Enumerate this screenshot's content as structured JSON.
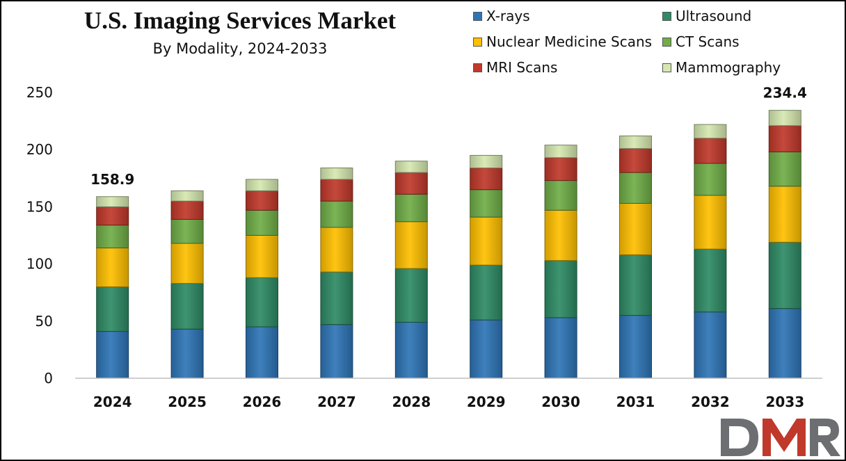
{
  "chart_data": {
    "type": "bar",
    "stacked": true,
    "title": "U.S. Imaging Services Market",
    "subtitle": "By Modality, 2024-2033",
    "categories": [
      "2024",
      "2025",
      "2026",
      "2027",
      "2028",
      "2029",
      "2030",
      "2031",
      "2032",
      "2033"
    ],
    "ylim": [
      0,
      250
    ],
    "yticks": [
      0,
      50,
      100,
      150,
      200,
      250
    ],
    "legend_position": "top-right",
    "grid": false,
    "series": [
      {
        "name": "X-rays",
        "color": "#2e75b6",
        "values": [
          41,
          43,
          45,
          47,
          49,
          51,
          53,
          55,
          58,
          61
        ]
      },
      {
        "name": "Ultrasound",
        "color": "#2e8b65",
        "values": [
          39,
          40,
          43,
          46,
          47,
          48,
          50,
          53,
          55,
          58
        ]
      },
      {
        "name": "Nuclear Medicine Scans",
        "color": "#ffc000",
        "values": [
          34,
          35,
          37,
          39,
          41,
          42,
          44,
          45,
          47,
          49
        ]
      },
      {
        "name": "CT Scans",
        "color": "#70ad47",
        "values": [
          20,
          21,
          22,
          23,
          24,
          24,
          26,
          27,
          28,
          30
        ]
      },
      {
        "name": "MRI Scans",
        "color": "#c0392b",
        "values": [
          16,
          16,
          17,
          19,
          19,
          19,
          20,
          21,
          22,
          23
        ]
      },
      {
        "name": "Mammography",
        "color": "#d6e8b0",
        "values": [
          8.9,
          9,
          10,
          10,
          10,
          11,
          11,
          11,
          12,
          13.4
        ]
      }
    ],
    "data_labels": [
      {
        "category": "2024",
        "value": "158.9"
      },
      {
        "category": "2033",
        "value": "234.4"
      }
    ]
  },
  "logo": {
    "text": "DMR",
    "colors": [
      "#6d6e71",
      "#c0392b"
    ]
  }
}
